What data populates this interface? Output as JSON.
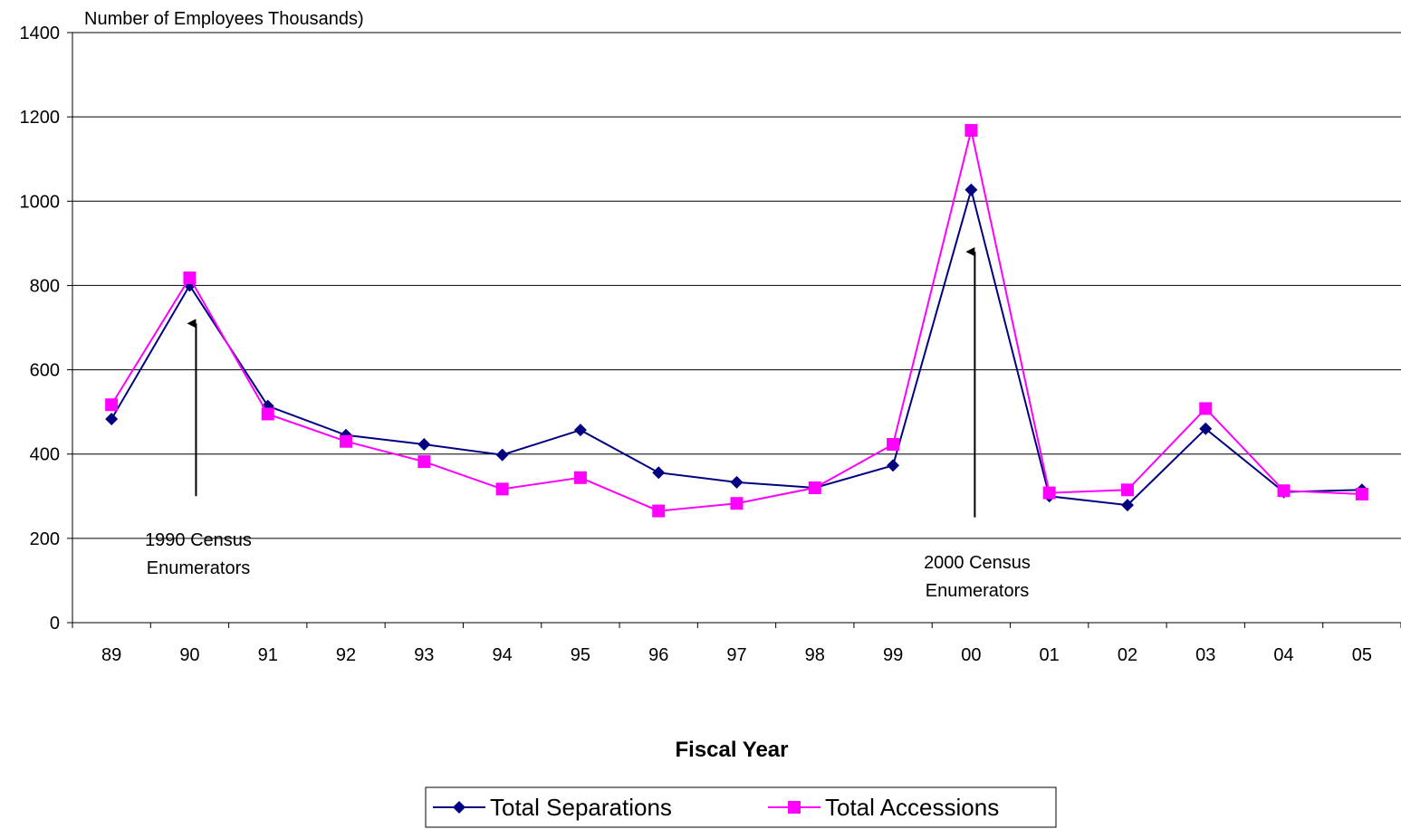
{
  "chart_data": {
    "type": "line",
    "ylabel": "Number of Employees Thousands)",
    "xlabel": "Fiscal Year",
    "categories": [
      "89",
      "90",
      "91",
      "92",
      "93",
      "94",
      "95",
      "96",
      "97",
      "98",
      "99",
      "00",
      "01",
      "02",
      "03",
      "04",
      "05"
    ],
    "ylim": [
      0,
      1400
    ],
    "yticks": [
      0,
      200,
      400,
      600,
      800,
      1000,
      1200,
      1400
    ],
    "grid": true,
    "legend_position": "bottom",
    "series": [
      {
        "name": "Total Separations",
        "color": "#000080",
        "marker": "diamond",
        "values": [
          483,
          800,
          514,
          445,
          423,
          398,
          457,
          356,
          333,
          320,
          373,
          1027,
          300,
          279,
          460,
          310,
          315
        ]
      },
      {
        "name": "Total Accessions",
        "color": "#ff00ff",
        "marker": "square",
        "values": [
          517,
          818,
          495,
          430,
          382,
          317,
          344,
          265,
          283,
          320,
          423,
          1168,
          308,
          315,
          508,
          313,
          305
        ]
      }
    ],
    "annotations": [
      {
        "text": [
          "1990 Census",
          "Enumerators"
        ],
        "category": "90",
        "arrow_from": 300,
        "arrow_to": 710
      },
      {
        "text": [
          "2000 Census",
          "Enumerators"
        ],
        "category": "00",
        "arrow_from": 250,
        "arrow_to": 880
      }
    ]
  }
}
